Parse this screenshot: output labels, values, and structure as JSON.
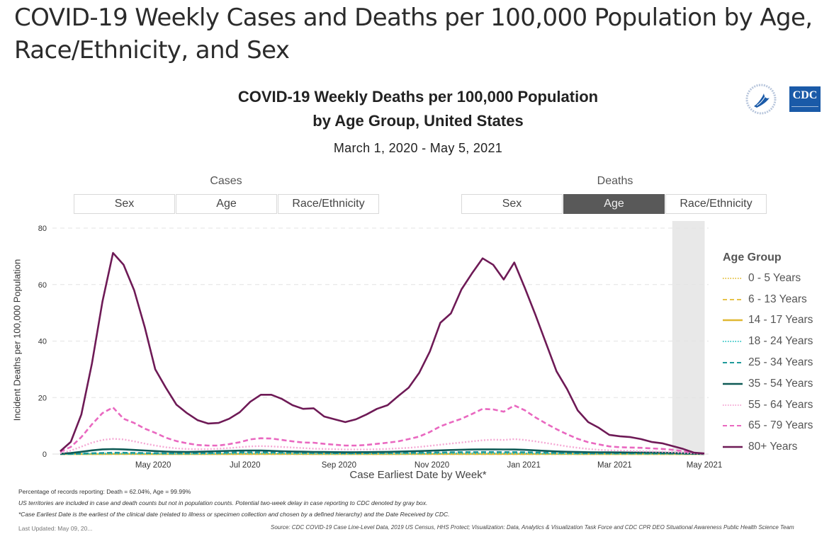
{
  "page": {
    "title": "COVID-19 Weekly Cases and Deaths per 100,000 Population by Age, Race/Ethnicity, and Sex"
  },
  "logos": {
    "hhs": "hhs-eagle-logo",
    "cdc": "CDC"
  },
  "toggles": {
    "cases": {
      "label": "Cases",
      "options": [
        "Sex",
        "Age",
        "Race/Ethnicity"
      ],
      "selected": null
    },
    "deaths": {
      "label": "Deaths",
      "options": [
        "Sex",
        "Age",
        "Race/Ethnicity"
      ],
      "selected": "Age"
    }
  },
  "footer": {
    "reporting": "Percentage of records reporting: Death = 62.04%, Age = 99.99%",
    "territories": "US territories are included in case and death counts but not in population counts. Potential two-week delay in case reporting to CDC denoted by gray box.",
    "definition": "*Case Earliest Date is the earliest of the clinical date (related to illness or specimen collection and chosen by a defined hierarchy) and the Date Received by CDC.",
    "updated": "Last Updated: May 09, 20...",
    "source": "Source: CDC COVID-19 Case Line-Level Data, 2019 US Census, HHS Protect; Visualization: Data, Analytics & Visualization Task Force and CDC CPR DEO Situational Awareness Public Health Science Team"
  },
  "chart_data": {
    "type": "line",
    "title": "COVID-19 Weekly Deaths per 100,000 Population",
    "title_line2": "by Age Group, United States",
    "subtitle": "March 1, 2020 - May 5, 2021",
    "xlabel": "Case Earliest Date by Week*",
    "ylabel": "Incident Deaths per 100,000 Population",
    "ylim": [
      0,
      80
    ],
    "yticks": [
      0,
      20,
      40,
      60,
      80
    ],
    "grid": true,
    "x_start": "2020-03-01",
    "x_interval": "week",
    "x_count": 62,
    "xticks": [
      {
        "label": "May 2020",
        "week": 8.8
      },
      {
        "label": "Jul 2020",
        "week": 17.5
      },
      {
        "label": "Sep 2020",
        "week": 26.4
      },
      {
        "label": "Nov 2020",
        "week": 35.2
      },
      {
        "label": "Jan 2021",
        "week": 43.9
      },
      {
        "label": "Mar 2021",
        "week": 52.5
      },
      {
        "label": "May 2021",
        "week": 61.0
      }
    ],
    "reporting_delay_box": {
      "from_week": 58,
      "to_week": 61,
      "color": "#e8e8e8"
    },
    "legend_title": "Age Group",
    "legend_position": "right",
    "series": [
      {
        "name": "0 - 5 Years",
        "color": "#e6c34a",
        "dash": "dot",
        "values": [
          0,
          0,
          0,
          0.02,
          0.03,
          0.04,
          0.04,
          0.04,
          0.03,
          0.03,
          0.02,
          0.02,
          0.02,
          0.02,
          0.02,
          0.02,
          0.02,
          0.02,
          0.03,
          0.03,
          0.03,
          0.03,
          0.03,
          0.02,
          0.02,
          0.02,
          0.02,
          0.02,
          0.02,
          0.02,
          0.02,
          0.02,
          0.02,
          0.02,
          0.02,
          0.03,
          0.03,
          0.03,
          0.03,
          0.03,
          0.03,
          0.03,
          0.03,
          0.03,
          0.03,
          0.03,
          0.02,
          0.02,
          0.02,
          0.02,
          0.02,
          0.02,
          0.02,
          0.02,
          0.02,
          0.02,
          0.02,
          0.01,
          0.01,
          0.01,
          0,
          0
        ]
      },
      {
        "name": "6 - 13 Years",
        "color": "#e6c34a",
        "dash": "dash",
        "values": [
          0,
          0,
          0,
          0.01,
          0.02,
          0.02,
          0.02,
          0.02,
          0.02,
          0.01,
          0.01,
          0.01,
          0.01,
          0.01,
          0.01,
          0.01,
          0.01,
          0.01,
          0.02,
          0.02,
          0.02,
          0.02,
          0.02,
          0.01,
          0.01,
          0.01,
          0.01,
          0.01,
          0.01,
          0.01,
          0.01,
          0.01,
          0.01,
          0.01,
          0.01,
          0.02,
          0.02,
          0.02,
          0.02,
          0.02,
          0.02,
          0.02,
          0.02,
          0.02,
          0.02,
          0.02,
          0.01,
          0.01,
          0.01,
          0.01,
          0.01,
          0.01,
          0.01,
          0.01,
          0.01,
          0.01,
          0.01,
          0.01,
          0.01,
          0,
          0,
          0
        ]
      },
      {
        "name": "14 - 17 Years",
        "color": "#e0b832",
        "dash": "solid",
        "values": [
          0,
          0,
          0.01,
          0.02,
          0.03,
          0.04,
          0.04,
          0.04,
          0.03,
          0.03,
          0.02,
          0.02,
          0.02,
          0.02,
          0.02,
          0.03,
          0.03,
          0.04,
          0.05,
          0.05,
          0.05,
          0.05,
          0.04,
          0.04,
          0.03,
          0.03,
          0.03,
          0.03,
          0.03,
          0.03,
          0.03,
          0.03,
          0.03,
          0.04,
          0.04,
          0.05,
          0.05,
          0.06,
          0.06,
          0.06,
          0.06,
          0.06,
          0.06,
          0.06,
          0.06,
          0.05,
          0.05,
          0.04,
          0.04,
          0.03,
          0.03,
          0.03,
          0.03,
          0.03,
          0.03,
          0.03,
          0.02,
          0.02,
          0.02,
          0.01,
          0.01,
          0
        ]
      },
      {
        "name": "18 - 24 Years",
        "color": "#3cc8c8",
        "dash": "dot",
        "values": [
          0,
          0.02,
          0.05,
          0.1,
          0.14,
          0.17,
          0.17,
          0.16,
          0.14,
          0.12,
          0.1,
          0.09,
          0.09,
          0.1,
          0.12,
          0.15,
          0.19,
          0.22,
          0.24,
          0.24,
          0.22,
          0.19,
          0.17,
          0.15,
          0.14,
          0.13,
          0.12,
          0.12,
          0.12,
          0.13,
          0.14,
          0.15,
          0.16,
          0.17,
          0.18,
          0.2,
          0.22,
          0.24,
          0.25,
          0.26,
          0.27,
          0.27,
          0.26,
          0.26,
          0.24,
          0.21,
          0.18,
          0.15,
          0.13,
          0.11,
          0.1,
          0.09,
          0.09,
          0.09,
          0.09,
          0.09,
          0.08,
          0.08,
          0.07,
          0.05,
          0.03,
          0.01
        ]
      },
      {
        "name": "25 - 34 Years",
        "color": "#1e9a9a",
        "dash": "dash",
        "values": [
          0.02,
          0.06,
          0.15,
          0.28,
          0.38,
          0.44,
          0.44,
          0.41,
          0.36,
          0.31,
          0.26,
          0.23,
          0.23,
          0.27,
          0.33,
          0.41,
          0.5,
          0.57,
          0.62,
          0.62,
          0.58,
          0.52,
          0.46,
          0.41,
          0.37,
          0.34,
          0.32,
          0.31,
          0.31,
          0.32,
          0.34,
          0.36,
          0.39,
          0.42,
          0.46,
          0.5,
          0.55,
          0.6,
          0.64,
          0.67,
          0.69,
          0.69,
          0.68,
          0.67,
          0.63,
          0.56,
          0.48,
          0.4,
          0.34,
          0.3,
          0.27,
          0.26,
          0.25,
          0.25,
          0.25,
          0.24,
          0.23,
          0.22,
          0.19,
          0.14,
          0.08,
          0.02
        ]
      },
      {
        "name": "35 - 54 Years",
        "color": "#0e5a55",
        "dash": "solid",
        "values": [
          0.1,
          0.35,
          0.8,
          1.3,
          1.65,
          1.75,
          1.65,
          1.45,
          1.25,
          1.05,
          0.88,
          0.78,
          0.75,
          0.8,
          0.9,
          1.02,
          1.12,
          1.2,
          1.25,
          1.22,
          1.12,
          1.0,
          0.9,
          0.82,
          0.76,
          0.72,
          0.68,
          0.66,
          0.66,
          0.68,
          0.72,
          0.78,
          0.85,
          0.95,
          1.05,
          1.18,
          1.3,
          1.42,
          1.52,
          1.6,
          1.65,
          1.66,
          1.62,
          1.6,
          1.48,
          1.3,
          1.1,
          0.92,
          0.8,
          0.72,
          0.66,
          0.62,
          0.6,
          0.58,
          0.56,
          0.54,
          0.52,
          0.48,
          0.4,
          0.28,
          0.15,
          0.05
        ]
      },
      {
        "name": "55 - 64 Years",
        "color": "#f5a8d4",
        "dash": "dot",
        "values": [
          0.3,
          1.2,
          2.6,
          4.0,
          5.0,
          5.4,
          5.2,
          4.5,
          3.7,
          3.0,
          2.4,
          2.0,
          1.8,
          1.7,
          1.7,
          1.9,
          2.1,
          2.4,
          2.7,
          2.8,
          2.7,
          2.5,
          2.3,
          2.1,
          1.9,
          1.8,
          1.7,
          1.6,
          1.6,
          1.6,
          1.7,
          1.8,
          2.0,
          2.2,
          2.5,
          2.9,
          3.3,
          3.7,
          4.1,
          4.5,
          4.9,
          5.1,
          5.0,
          5.3,
          5.0,
          4.5,
          3.9,
          3.3,
          2.7,
          2.2,
          1.8,
          1.5,
          1.3,
          1.2,
          1.1,
          1.0,
          0.9,
          0.8,
          0.65,
          0.45,
          0.25,
          0.08
        ]
      },
      {
        "name": "65 - 79 Years",
        "color": "#e968c0",
        "dash": "dash",
        "values": [
          0.8,
          2.5,
          6.0,
          10.5,
          14.5,
          16.5,
          12.5,
          11.0,
          9.0,
          7.5,
          5.8,
          4.6,
          3.8,
          3.2,
          3.0,
          3.0,
          3.5,
          4.2,
          5.2,
          5.6,
          5.5,
          5.0,
          4.5,
          4.1,
          4.0,
          3.6,
          3.3,
          3.0,
          3.0,
          3.2,
          3.6,
          4.0,
          4.5,
          5.3,
          6.2,
          7.8,
          9.8,
          11.2,
          12.5,
          14.2,
          16.0,
          15.8,
          15.0,
          17.2,
          15.5,
          13.0,
          10.8,
          8.8,
          7.0,
          5.4,
          4.2,
          3.4,
          2.7,
          2.4,
          2.3,
          2.2,
          2.0,
          1.8,
          1.5,
          1.0,
          0.5,
          0.15
        ]
      },
      {
        "name": "80+ Years",
        "color": "#6e1a56",
        "dash": "solid",
        "values": [
          1.0,
          4.3,
          14.0,
          32.0,
          54.0,
          71.2,
          67.0,
          58.0,
          45.0,
          30.0,
          23.5,
          17.5,
          14.5,
          12.0,
          10.8,
          11.0,
          12.5,
          14.8,
          18.5,
          21.0,
          21.0,
          19.5,
          17.3,
          16.0,
          16.2,
          13.3,
          12.3,
          11.3,
          12.3,
          14.0,
          16.0,
          17.3,
          20.5,
          23.5,
          28.8,
          36.3,
          46.5,
          49.8,
          58.3,
          64.0,
          69.3,
          67.0,
          61.8,
          67.8,
          58.8,
          49.3,
          39.3,
          29.3,
          23.0,
          15.5,
          11.3,
          9.3,
          6.8,
          6.3,
          6.0,
          5.3,
          4.3,
          3.8,
          2.8,
          1.8,
          0.5,
          0.2
        ]
      }
    ]
  }
}
